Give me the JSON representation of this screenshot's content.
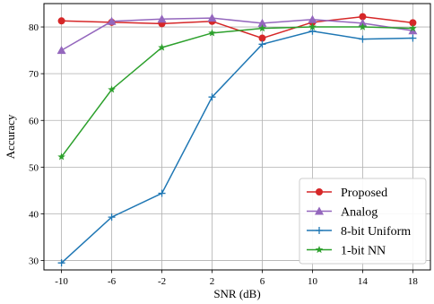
{
  "chart_data": {
    "type": "line",
    "xlabel": "SNR (dB)",
    "ylabel": "Accuracy",
    "x": [
      -10,
      -6,
      -2,
      2,
      6,
      10,
      14,
      18
    ],
    "xlim": [
      -11.4,
      19.4
    ],
    "ylim": [
      28,
      85
    ],
    "yticks": [
      30,
      40,
      50,
      60,
      70,
      80
    ],
    "grid": true,
    "legend_position": "bottom-right",
    "series": [
      {
        "name": "Proposed",
        "color": "#d62728",
        "marker": "circle",
        "values": [
          81.3,
          81.0,
          80.7,
          81.2,
          77.6,
          81.0,
          82.2,
          80.9
        ]
      },
      {
        "name": "Analog",
        "color": "#9467bd",
        "marker": "triangle",
        "values": [
          75.0,
          81.2,
          81.7,
          81.9,
          80.8,
          81.6,
          80.8,
          79.2
        ]
      },
      {
        "name": "8-bit Uniform",
        "color": "#1f77b4",
        "marker": "plus",
        "values": [
          29.5,
          39.3,
          44.4,
          65.0,
          76.3,
          79.1,
          77.4,
          77.6
        ]
      },
      {
        "name": "1-bit NN",
        "color": "#2ca02c",
        "marker": "star",
        "values": [
          52.2,
          66.6,
          75.6,
          78.7,
          79.7,
          80.0,
          80.0,
          79.7
        ]
      }
    ]
  }
}
